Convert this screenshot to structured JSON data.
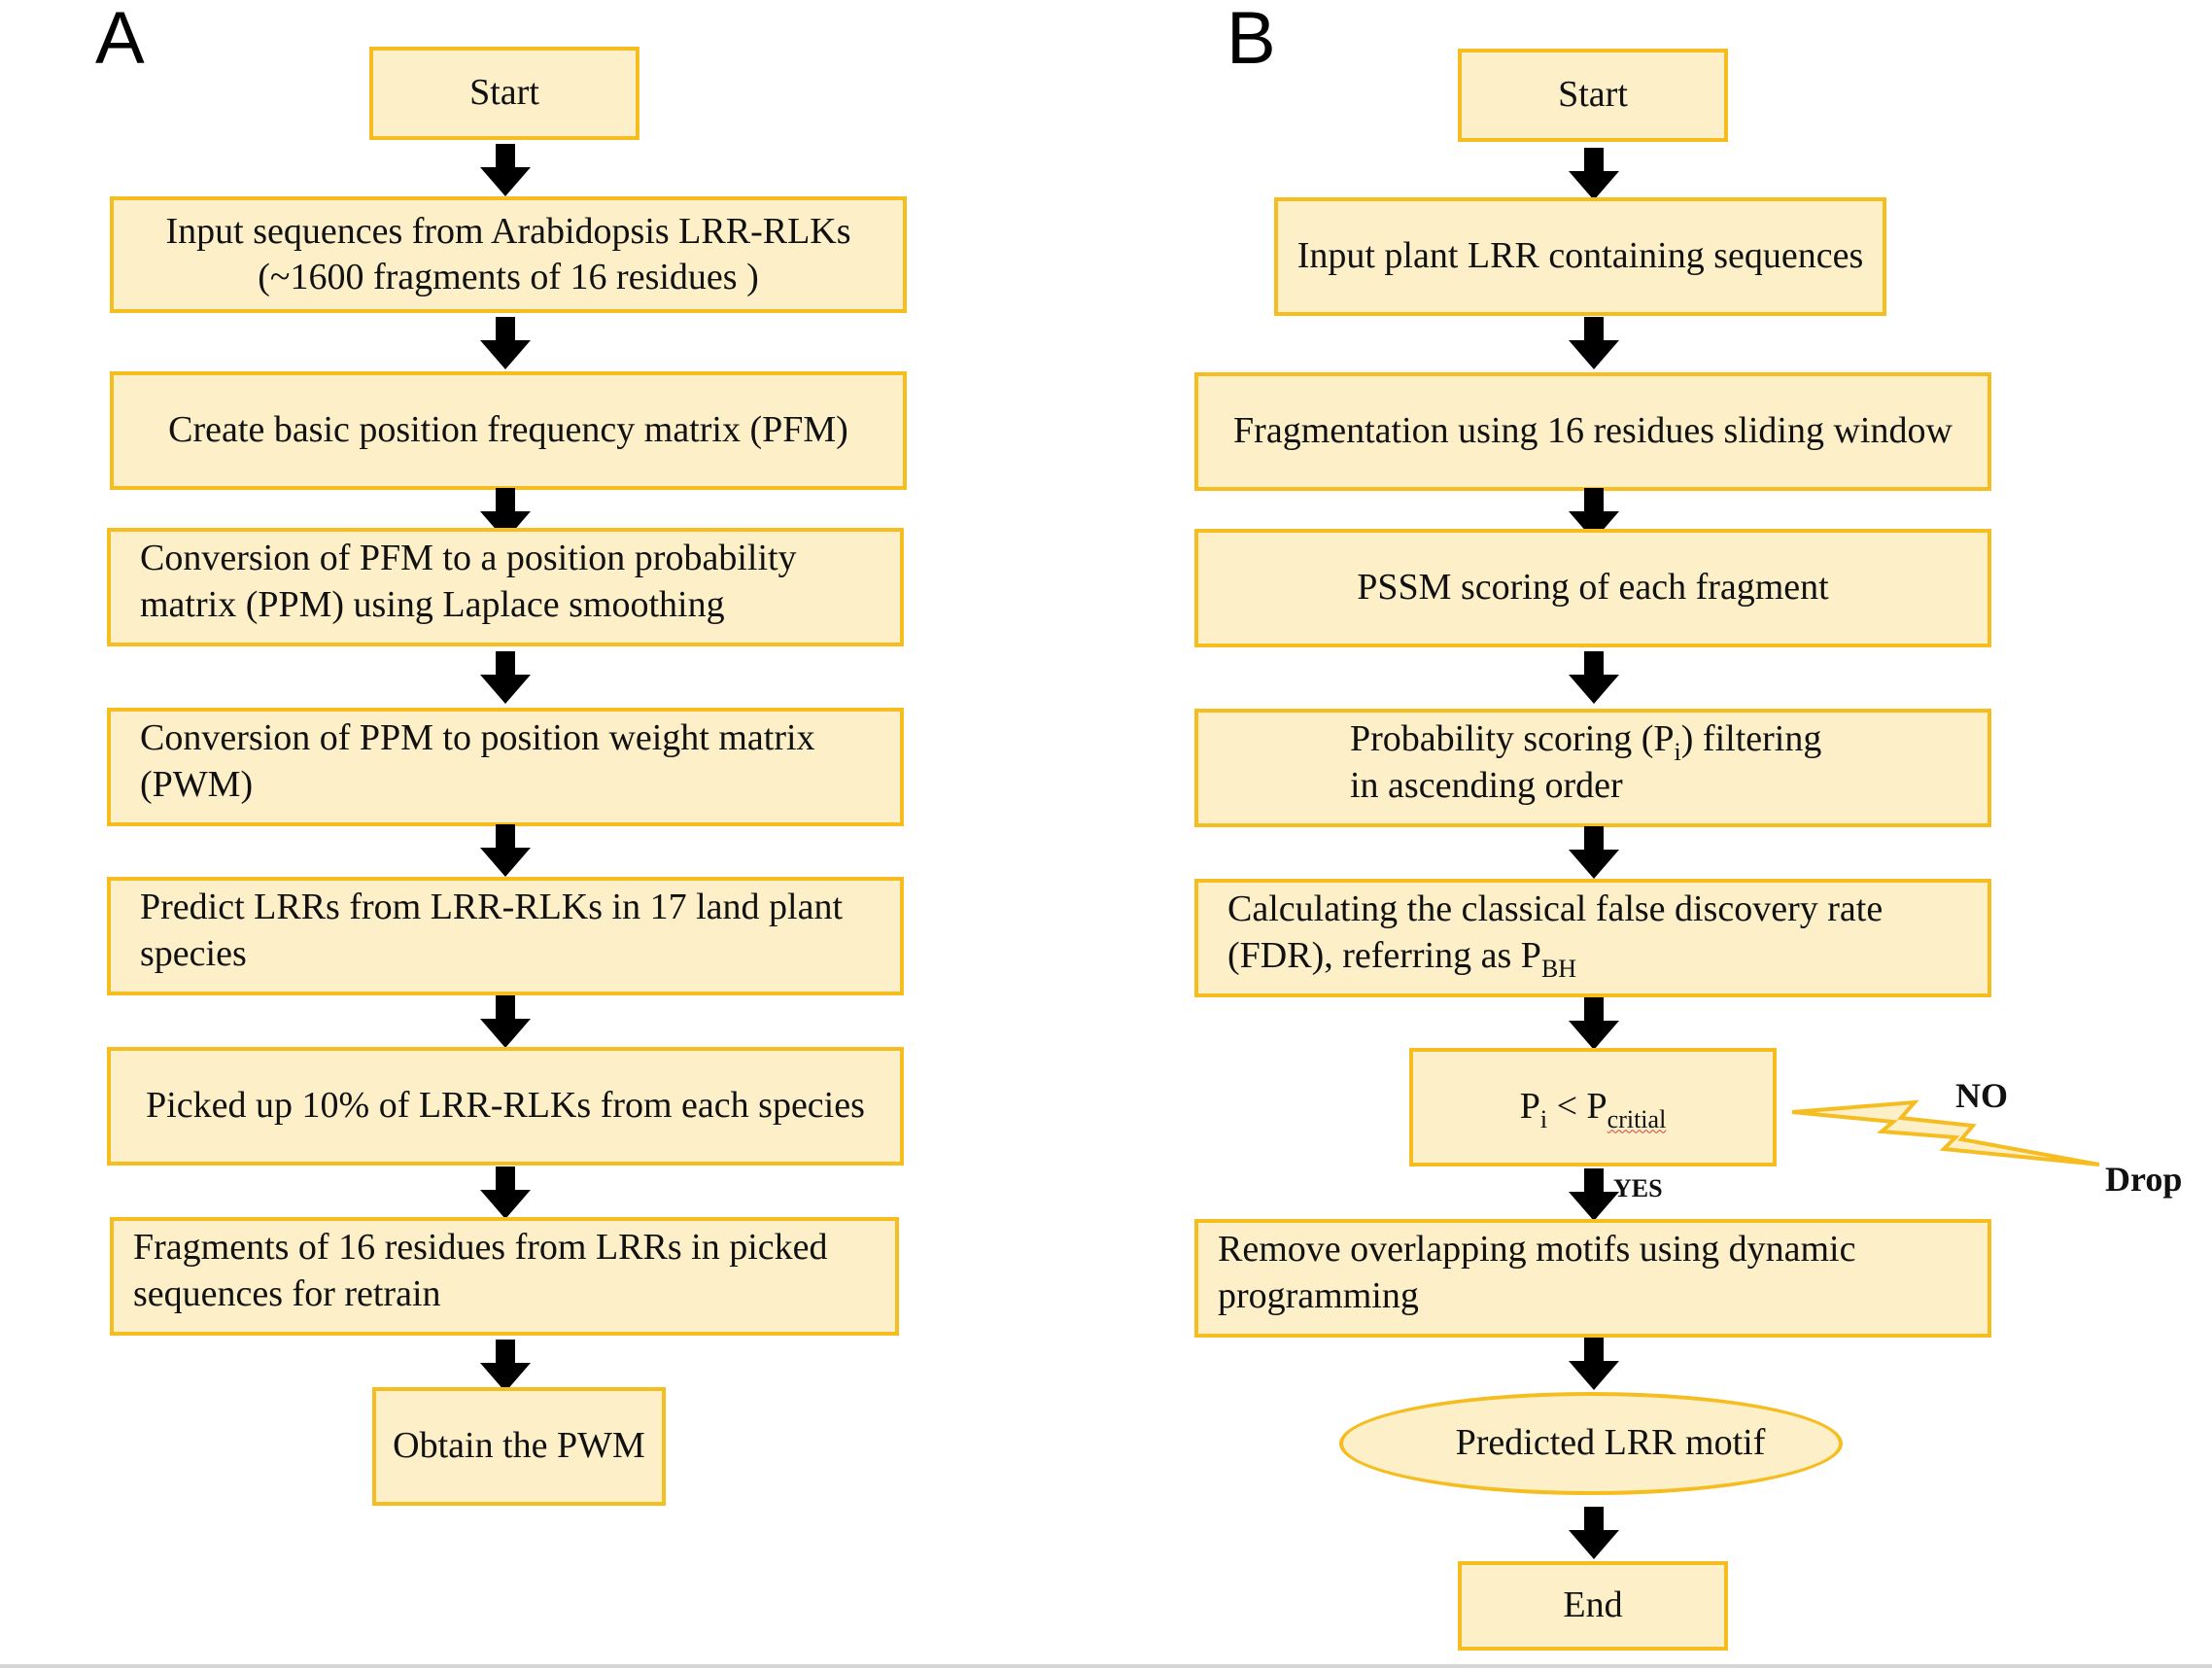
{
  "panel_a": {
    "label": "A",
    "steps": [
      "Start",
      "Input sequences from Arabidopsis LRR-RLKs",
      "(~1600 fragments of 16 residues )",
      "Create basic position frequency matrix (PFM)",
      "Conversion of PFM to a position probability",
      "matrix (PPM) using Laplace smoothing",
      "Conversion of PPM to position weight matrix",
      "(PWM)",
      "Predict LRRs from LRR-RLKs in 17 land plant",
      "species",
      "Picked up 10% of LRR-RLKs from each species",
      "Fragments of 16 residues from LRRs in picked",
      "sequences for retrain",
      "Obtain the PWM"
    ]
  },
  "panel_b": {
    "label": "B",
    "start": "Start",
    "input": "Input plant LRR containing sequences",
    "fragmentation": "Fragmentation using 16 residues sliding window",
    "pssm": "PSSM scoring of each fragment",
    "prob_line1_a": "Probability scoring (P",
    "prob_line1_sub": "i",
    "prob_line1_b": ") filtering",
    "prob_line2": "in ascending order",
    "fdr_line1": "Calculating the classical false discovery rate",
    "fdr_line2": "(FDR), referring as P",
    "fdr_sub": "BH",
    "decision_p": "P",
    "decision_i": "i",
    "decision_lt": " < P",
    "decision_sub": "critial",
    "yes": "YES",
    "no": "NO",
    "drop": "Drop",
    "remove_line1": "Remove overlapping motifs using dynamic",
    "remove_line2": "programming",
    "predicted": "Predicted LRR motif",
    "end": "End"
  },
  "colors": {
    "box_fill": "#fdefc8",
    "box_border": "#f5bd1f",
    "arrow": "#000000"
  }
}
